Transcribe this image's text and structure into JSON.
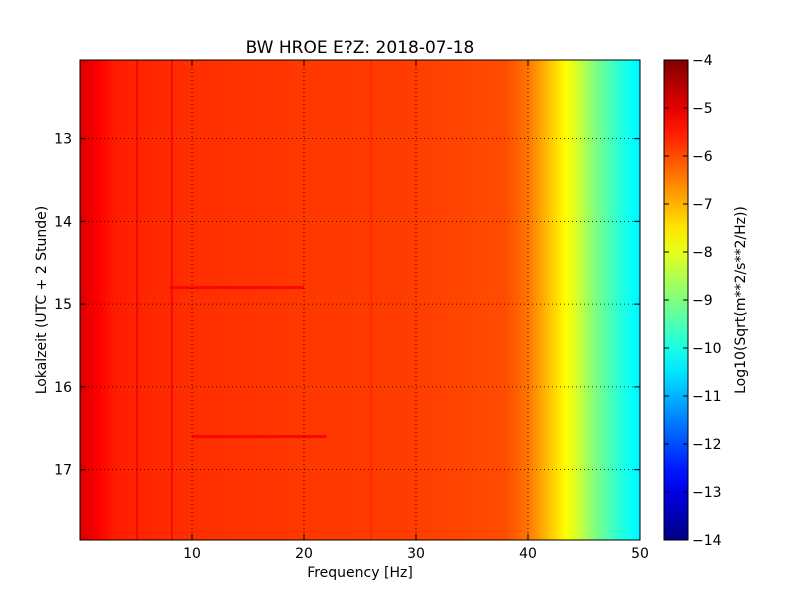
{
  "chart_data": {
    "type": "heatmap",
    "title": "BW HROE E?Z: 2018-07-18",
    "xlabel": "Frequency [Hz]",
    "ylabel": "Lokalzeit (UTC + 2 Stunde)",
    "colorbar_label": "Log10(Sqrt(m**2/s**2/Hz))",
    "colormap": "jet",
    "xlim": [
      0,
      50
    ],
    "ylim": [
      17.85,
      12.05
    ],
    "x_ticks": [
      10,
      20,
      30,
      40,
      50
    ],
    "y_ticks": [
      13,
      14,
      15,
      16,
      17
    ],
    "colorbar_range": [
      -14,
      -4
    ],
    "colorbar_ticks": [
      -4,
      -5,
      -6,
      -7,
      -8,
      -9,
      -10,
      -11,
      -12,
      -13,
      -14
    ],
    "grid": true,
    "frequency_profile": {
      "frequency_hz": [
        0,
        1,
        2,
        3,
        5,
        10,
        20,
        30,
        38,
        40,
        41,
        42,
        43,
        44,
        45,
        46,
        47,
        48,
        49,
        50
      ],
      "log10_amplitude": [
        -4.9,
        -5.1,
        -5.3,
        -5.5,
        -5.6,
        -5.7,
        -5.8,
        -5.85,
        -6.0,
        -6.4,
        -6.8,
        -7.2,
        -7.6,
        -8.0,
        -8.5,
        -9.0,
        -9.4,
        -9.8,
        -10.1,
        -10.4
      ]
    },
    "notable_features": [
      {
        "type": "vertical_line",
        "frequency_hz": 5.1,
        "log10_amplitude": -5.1
      },
      {
        "type": "vertical_line",
        "frequency_hz": 8.2,
        "log10_amplitude": -5.2
      },
      {
        "type": "vertical_line",
        "frequency_hz": 26.0,
        "log10_amplitude": -5.6
      },
      {
        "type": "horizontal_band",
        "time": 14.8,
        "freq_range": [
          8,
          20
        ],
        "log10_amplitude": -5.2
      },
      {
        "type": "horizontal_band",
        "time": 16.6,
        "freq_range": [
          10,
          22
        ],
        "log10_amplitude": -5.2
      }
    ]
  }
}
